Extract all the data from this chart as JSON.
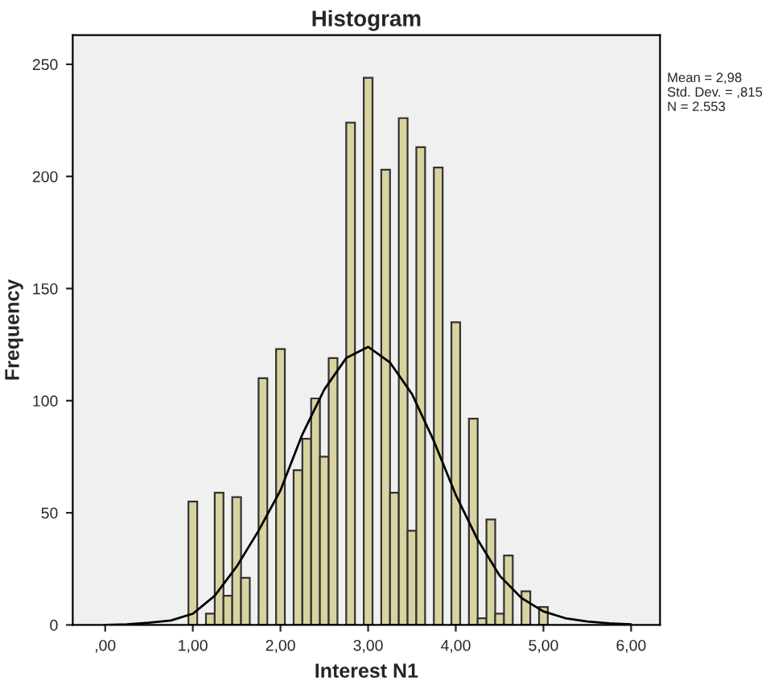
{
  "chart_data": {
    "type": "histogram",
    "title": "Histogram",
    "xlabel": "Interest N1",
    "ylabel": "Frequency",
    "series": [
      {
        "color": "#d8d3a0",
        "bins": [
          0.95,
          1.05,
          1.15,
          1.25,
          1.35,
          1.45,
          1.55,
          1.65,
          1.75,
          1.85,
          1.95,
          2.05,
          2.15,
          2.25,
          2.35,
          2.45,
          2.55,
          2.65,
          2.75,
          2.85,
          2.95,
          3.05,
          3.15,
          3.25,
          3.35,
          3.45,
          3.55,
          3.65,
          3.75,
          3.85,
          3.95,
          4.05,
          4.15,
          4.25,
          4.35,
          4.45,
          4.55,
          4.65,
          4.75,
          4.85,
          4.95,
          5.05
        ],
        "values": [
          55,
          0,
          5,
          59,
          13,
          57,
          21,
          0,
          110,
          0,
          123,
          0,
          69,
          83,
          101,
          75,
          119,
          0,
          224,
          0,
          244,
          0,
          203,
          59,
          226,
          42,
          213,
          0,
          204,
          0,
          135,
          0,
          92,
          3,
          47,
          5,
          31,
          0,
          15,
          0,
          8
        ]
      },
      {
        "type": "line",
        "color": "#000000",
        "x": [
          0,
          0.25,
          0.5,
          0.75,
          1.0,
          1.25,
          1.5,
          1.75,
          2.0,
          2.25,
          2.5,
          2.75,
          3.0,
          3.25,
          3.5,
          3.75,
          4.0,
          4.25,
          4.5,
          4.75,
          5.0,
          5.25,
          5.5,
          5.75,
          6.0
        ],
        "values": [
          0,
          0.3,
          1,
          2,
          5,
          13,
          26,
          42,
          60,
          85,
          105,
          119,
          124,
          117,
          103,
          82,
          58,
          38,
          22,
          12,
          6,
          3,
          1.5,
          0.7,
          0.3
        ]
      }
    ],
    "xlim": [
      -0.37,
      6.33
    ],
    "ylim": [
      0,
      263
    ],
    "xticks": [
      {
        "value": 0,
        "label": ",00"
      },
      {
        "value": 1,
        "label": "1,00"
      },
      {
        "value": 2,
        "label": "2,00"
      },
      {
        "value": 3,
        "label": "3,00"
      },
      {
        "value": 4,
        "label": "4,00"
      },
      {
        "value": 5,
        "label": "5,00"
      },
      {
        "value": 6,
        "label": "6,00"
      }
    ],
    "yticks": [
      0,
      50,
      100,
      150,
      200,
      250
    ],
    "grid": false,
    "annotations": [
      "Mean = 2,98\nStd. Dev. = ,815\nN = 2.553"
    ]
  }
}
